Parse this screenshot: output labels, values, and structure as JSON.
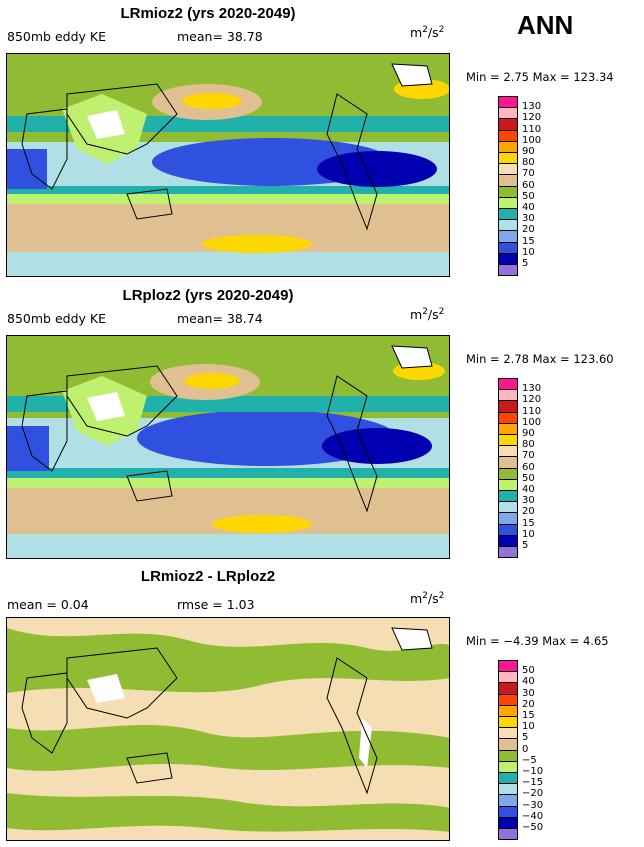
{
  "season": "ANN",
  "chart_data": [
    {
      "type": "heatmap",
      "title": "LRmioz2 (yrs 2020-2049)",
      "variable": "850mb eddy KE",
      "mean_text": "mean=  38.78",
      "units_base": "m",
      "units_exp1": "2",
      "units_mid": "/s",
      "units_exp2": "2",
      "minmax_text": "Min =    2.75  Max = 123.34",
      "min": 2.75,
      "max": 123.34,
      "mean": 38.78,
      "levels": [
        "130",
        "120",
        "110",
        "100",
        "90",
        "80",
        "70",
        "60",
        "50",
        "40",
        "30",
        "20",
        "15",
        "10",
        "5"
      ],
      "colors": [
        "#ff1493",
        "#ffb6c1",
        "#c8191e",
        "#ff4500",
        "#ffa500",
        "#ffd700",
        "#f5deb3",
        "#e0c090",
        "#8fbc33",
        "#c0f070",
        "#20b2aa",
        "#b0e0e6",
        "#7fa8e8",
        "#3050e0",
        "#0000b0",
        "#9370db"
      ]
    },
    {
      "type": "heatmap",
      "title": "LRploz2 (yrs 2020-2049)",
      "variable": "850mb eddy KE",
      "mean_text": "mean=  38.74",
      "units_base": "m",
      "units_exp1": "2",
      "units_mid": "/s",
      "units_exp2": "2",
      "minmax_text": "Min =    2.78  Max = 123.60",
      "min": 2.78,
      "max": 123.6,
      "mean": 38.74,
      "levels": [
        "130",
        "120",
        "110",
        "100",
        "90",
        "80",
        "70",
        "60",
        "50",
        "40",
        "30",
        "20",
        "15",
        "10",
        "5"
      ],
      "colors": [
        "#ff1493",
        "#ffb6c1",
        "#c8191e",
        "#ff4500",
        "#ffa500",
        "#ffd700",
        "#f5deb3",
        "#e0c090",
        "#8fbc33",
        "#c0f070",
        "#20b2aa",
        "#b0e0e6",
        "#7fa8e8",
        "#3050e0",
        "#0000b0",
        "#9370db"
      ]
    },
    {
      "type": "heatmap",
      "title": "LRmioz2 - LRploz2",
      "mean_text": "mean =    0.04",
      "rmse_text": "rmse =    1.03",
      "units_base": "m",
      "units_exp1": "2",
      "units_mid": "/s",
      "units_exp2": "2",
      "minmax_text": "Min =  −4.39  Max =    4.65",
      "min": -4.39,
      "max": 4.65,
      "mean": 0.04,
      "rmse": 1.03,
      "levels": [
        "50",
        "40",
        "30",
        "20",
        "15",
        "10",
        "5",
        "0",
        "−5",
        "−10",
        "−15",
        "−20",
        "−30",
        "−40",
        "−50"
      ],
      "colors": [
        "#ff1493",
        "#ffb6c1",
        "#c8191e",
        "#ff4500",
        "#ffa500",
        "#ffd700",
        "#f5deb3",
        "#e0c090",
        "#8fbc33",
        "#c0f070",
        "#20b2aa",
        "#b0e0e6",
        "#7fa8e8",
        "#3050e0",
        "#0000b0",
        "#9370db"
      ]
    }
  ]
}
